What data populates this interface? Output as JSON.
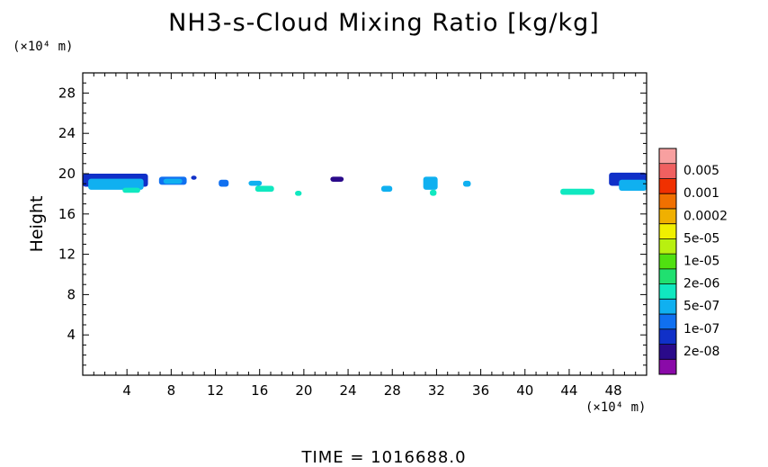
{
  "chart_data": {
    "type": "heatmap",
    "title": "NH3-s-Cloud Mixing Ratio [kg/kg]",
    "ylabel": "Height",
    "x_unit": "(×10⁴ m)",
    "y_unit": "(×10⁴ m)",
    "xlim": [
      0,
      51
    ],
    "ylim": [
      0,
      30
    ],
    "x_ticks": [
      4,
      8,
      12,
      16,
      20,
      24,
      28,
      32,
      36,
      40,
      44,
      48
    ],
    "y_ticks": [
      4,
      8,
      12,
      16,
      20,
      24,
      28
    ],
    "footer": "TIME = 1016688.0",
    "colorbar": {
      "labels": [
        "0.005",
        "0.001",
        "0.0002",
        "5e-05",
        "1e-05",
        "2e-06",
        "5e-07",
        "1e-07",
        "2e-08"
      ],
      "colors": [
        "#8a0aa8",
        "#2a0a8a",
        "#1030c8",
        "#1070f0",
        "#10b0f0",
        "#10e8c0",
        "#20e070",
        "#50e010",
        "#b8f010",
        "#f0f000",
        "#f0b000",
        "#f07000",
        "#f03000",
        "#f06060",
        "#f8a0a0"
      ]
    },
    "cloud_patches": [
      {
        "x": [
          0.0,
          5.9
        ],
        "y": [
          18.7,
          20.0
        ],
        "level": 2
      },
      {
        "x": [
          0.5,
          5.5
        ],
        "y": [
          18.4,
          19.5
        ],
        "level": 4
      },
      {
        "x": [
          3.6,
          5.2
        ],
        "y": [
          18.1,
          18.6
        ],
        "level": 5
      },
      {
        "x": [
          6.9,
          9.4
        ],
        "y": [
          18.9,
          19.7
        ],
        "level": 3
      },
      {
        "x": [
          7.3,
          9.0
        ],
        "y": [
          19.0,
          19.5
        ],
        "level": 4
      },
      {
        "x": [
          9.8,
          10.3
        ],
        "y": [
          19.4,
          19.8
        ],
        "level": 2
      },
      {
        "x": [
          12.3,
          13.2
        ],
        "y": [
          18.7,
          19.4
        ],
        "level": 3
      },
      {
        "x": [
          15.0,
          16.2
        ],
        "y": [
          18.8,
          19.3
        ],
        "level": 4
      },
      {
        "x": [
          15.6,
          17.3
        ],
        "y": [
          18.2,
          18.8
        ],
        "level": 5
      },
      {
        "x": [
          19.2,
          19.8
        ],
        "y": [
          17.8,
          18.3
        ],
        "level": 5
      },
      {
        "x": [
          22.4,
          23.6
        ],
        "y": [
          19.2,
          19.7
        ],
        "level": 1
      },
      {
        "x": [
          27.0,
          28.0
        ],
        "y": [
          18.2,
          18.8
        ],
        "level": 4
      },
      {
        "x": [
          30.8,
          32.1
        ],
        "y": [
          18.4,
          19.7
        ],
        "level": 4
      },
      {
        "x": [
          31.4,
          32.0
        ],
        "y": [
          17.8,
          18.4
        ],
        "level": 5
      },
      {
        "x": [
          34.4,
          35.1
        ],
        "y": [
          18.7,
          19.3
        ],
        "level": 4
      },
      {
        "x": [
          43.2,
          46.3
        ],
        "y": [
          17.9,
          18.5
        ],
        "level": 5
      },
      {
        "x": [
          47.6,
          51.0
        ],
        "y": [
          18.8,
          20.1
        ],
        "level": 2
      },
      {
        "x": [
          48.5,
          51.0
        ],
        "y": [
          18.3,
          19.4
        ],
        "level": 4
      }
    ]
  }
}
